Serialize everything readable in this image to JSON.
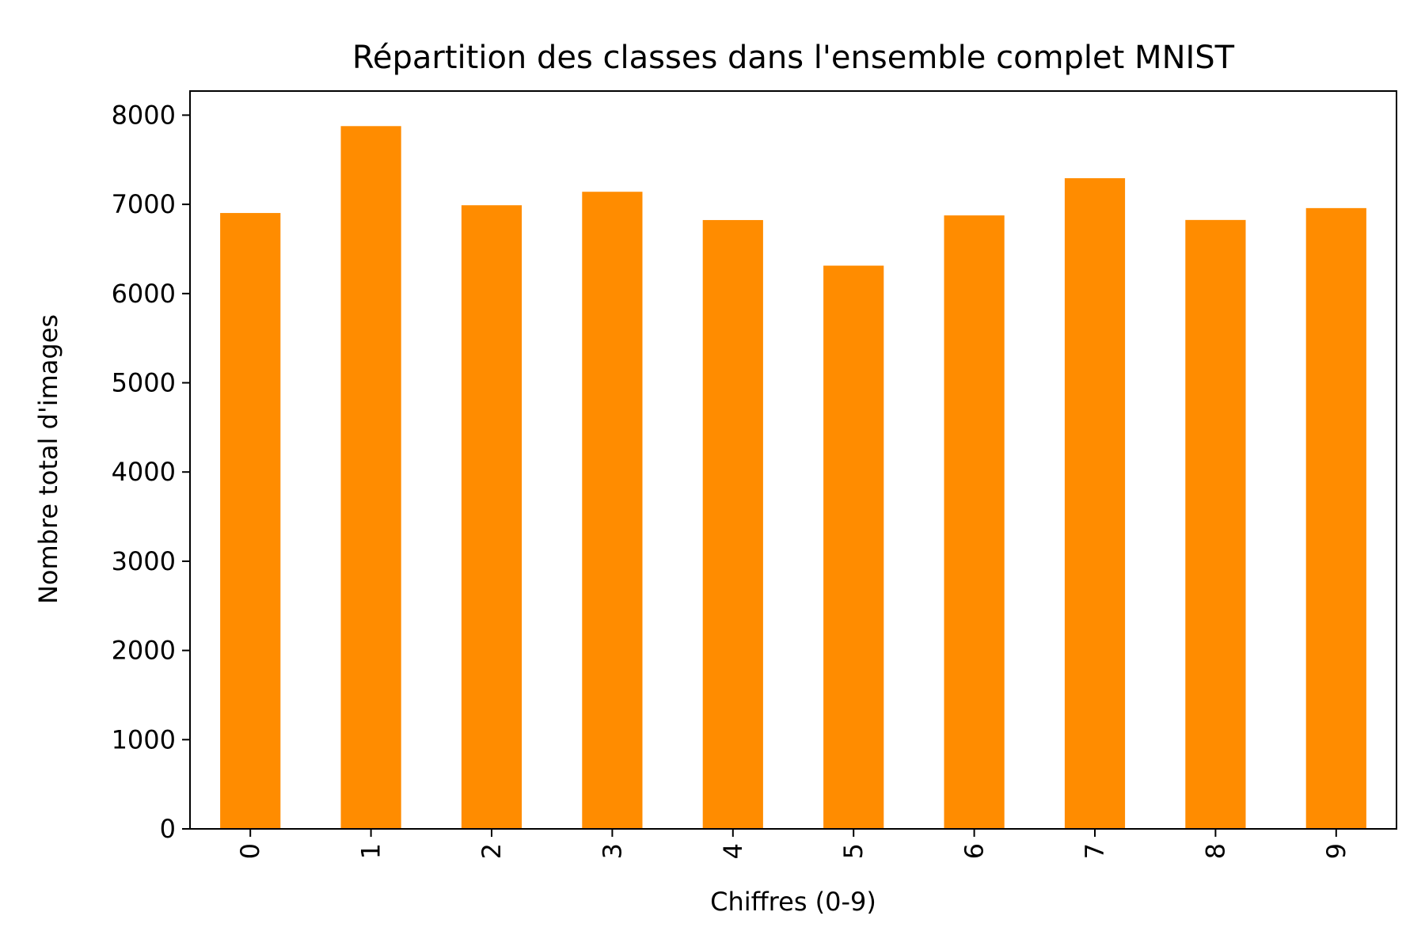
{
  "chart_data": {
    "type": "bar",
    "title": "Répartition des classes dans l'ensemble complet MNIST",
    "xlabel": "Chiffres (0-9)",
    "ylabel": "Nombre total d'images",
    "categories": [
      "0",
      "1",
      "2",
      "3",
      "4",
      "5",
      "6",
      "7",
      "8",
      "9"
    ],
    "values": [
      6903,
      7877,
      6990,
      7141,
      6824,
      6313,
      6876,
      7293,
      6825,
      6958
    ],
    "ylim": [
      0,
      8270
    ],
    "yticks": [
      0,
      1000,
      2000,
      3000,
      4000,
      5000,
      6000,
      7000,
      8000
    ],
    "ytick_labels": [
      "0",
      "1000",
      "2000",
      "3000",
      "4000",
      "5000",
      "6000",
      "7000",
      "8000"
    ],
    "grid": false,
    "colors": {
      "bar": "#ff8c00",
      "axis": "#000000"
    }
  }
}
